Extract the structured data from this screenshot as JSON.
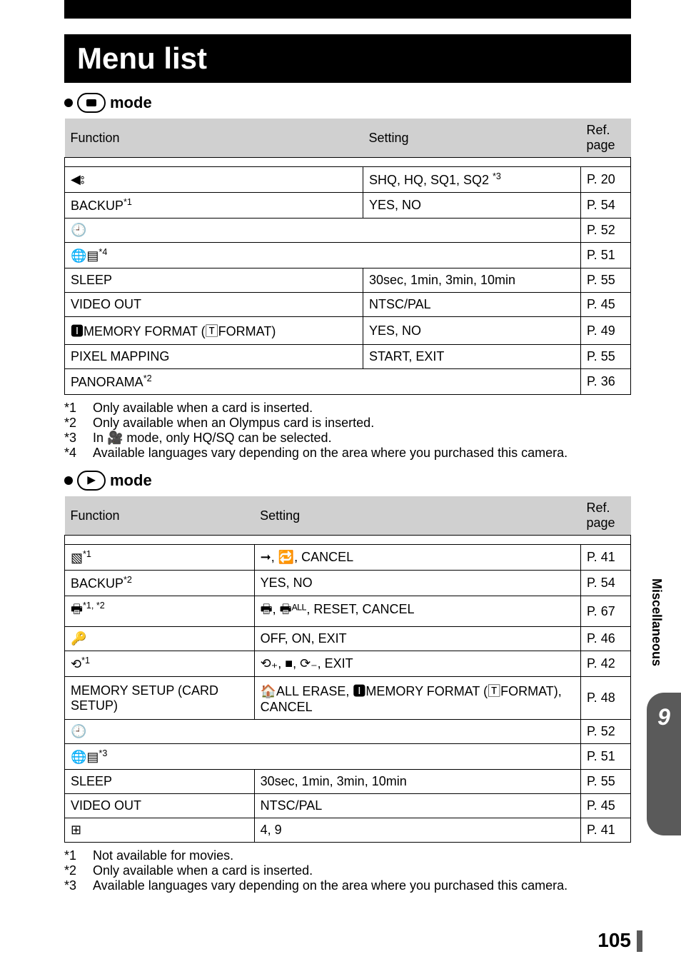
{
  "page": {
    "title": "Menu list",
    "mode_label": "mode",
    "side_label": "Miscellaneous",
    "chapter_number": "9",
    "page_number": "105"
  },
  "headers": {
    "function": "Function",
    "setting": "Setting",
    "ref": "Ref. page"
  },
  "shoot_table": [
    {
      "fn": "◀⦂",
      "setting": "SHQ, HQ, SQ1, SQ2",
      "setting_sup": "*3",
      "ref": "P. 20"
    },
    {
      "fn": "BACKUP",
      "fn_sup": "*1",
      "setting": "YES, NO",
      "ref": "P. 54"
    },
    {
      "fn": "🕘",
      "span2": true,
      "ref": "P. 52"
    },
    {
      "fn": "🌐▤",
      "fn_sup": "*4",
      "span2": true,
      "ref": "P. 51"
    },
    {
      "fn": "SLEEP",
      "setting": "30sec, 1min, 3min, 10min",
      "ref": "P. 55"
    },
    {
      "fn": "VIDEO OUT",
      "setting": "NTSC/PAL",
      "ref": "P. 45"
    },
    {
      "fn": "🅸MEMORY FORMAT (🅃FORMAT)",
      "setting": "YES, NO",
      "ref": "P. 49"
    },
    {
      "fn": "PIXEL MAPPING",
      "setting": "START, EXIT",
      "ref": "P. 55"
    },
    {
      "fn": "PANORAMA",
      "fn_sup": "*2",
      "span2": true,
      "ref": "P. 36"
    }
  ],
  "shoot_footnotes": [
    {
      "mark": "*1",
      "text": "Only available when a card is inserted."
    },
    {
      "mark": "*2",
      "text": "Only available when an Olympus card is inserted."
    },
    {
      "mark": "*3",
      "text": "In 🎥 mode, only HQ/SQ can be selected."
    },
    {
      "mark": "*4",
      "text": "Available languages vary depending on the area where you purchased this camera."
    }
  ],
  "play_table": [
    {
      "fn": "▧",
      "fn_sup": "*1",
      "setting": "➞, 🔁, CANCEL",
      "ref": "P. 41"
    },
    {
      "fn": "BACKUP",
      "fn_sup": "*2",
      "setting": "YES, NO",
      "ref": "P. 54"
    },
    {
      "fn": "🖶",
      "fn_sup": "*1, *2",
      "setting": "🖶, 🖶ᴬᴸᴸ, RESET, CANCEL",
      "ref": "P. 67"
    },
    {
      "fn": "🔑",
      "setting": "OFF, ON, EXIT",
      "ref": "P. 46"
    },
    {
      "fn": "⟲",
      "fn_sup": "*1",
      "setting": "⟲₊, ■, ⟳₋, EXIT",
      "ref": "P. 42"
    },
    {
      "fn": "MEMORY SETUP (CARD SETUP)",
      "setting": "🏠ALL ERASE, 🅸MEMORY FORMAT (🅃FORMAT), CANCEL",
      "ref": "P. 48"
    },
    {
      "fn": "🕘",
      "span2": true,
      "ref": "P. 52"
    },
    {
      "fn": "🌐▤",
      "fn_sup": "*3",
      "span2": true,
      "ref": "P. 51"
    },
    {
      "fn": "SLEEP",
      "setting": "30sec, 1min, 3min, 10min",
      "ref": "P. 55"
    },
    {
      "fn": "VIDEO OUT",
      "setting": "NTSC/PAL",
      "ref": "P. 45"
    },
    {
      "fn": "⊞",
      "setting": "4, 9",
      "ref": "P. 41"
    }
  ],
  "play_footnotes": [
    {
      "mark": "*1",
      "text": "Not available for movies."
    },
    {
      "mark": "*2",
      "text": "Only available when a card is inserted."
    },
    {
      "mark": "*3",
      "text": "Available languages vary depending on the area where you purchased this camera."
    }
  ]
}
